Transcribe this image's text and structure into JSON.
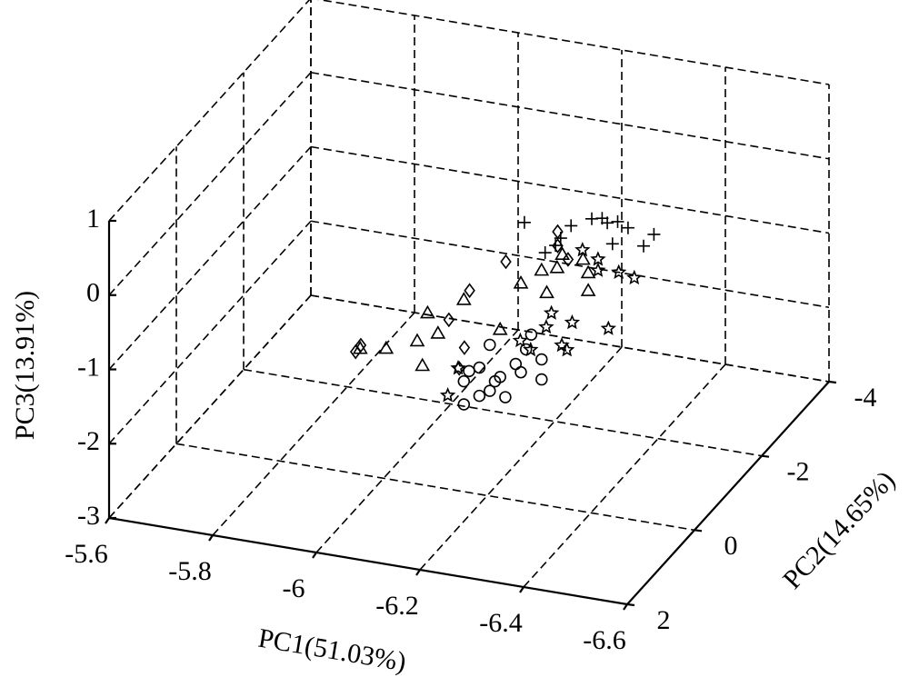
{
  "chart_data": {
    "type": "scatter3d",
    "xlabel": "PC1(51.03%)",
    "ylabel": "PC2(14.65%)",
    "zlabel": "PC3(13.91%)",
    "xlim": [
      -5.6,
      -6.6
    ],
    "xticks": [
      -5.6,
      -5.8,
      -6,
      -6.2,
      -6.4,
      -6.6
    ],
    "ylim": [
      2,
      -4
    ],
    "yticks": [
      2,
      0,
      -2,
      -4
    ],
    "zlim": [
      -3,
      1
    ],
    "zticks": [
      -3,
      -2,
      -1,
      0,
      1
    ],
    "grid": true,
    "color": "#000000",
    "series": [
      {
        "marker": "plus",
        "x": [
          -6.09,
          -6.16,
          -6.22,
          -6.25,
          -6.27,
          -6.29,
          -6.26,
          -6.32,
          -6.34,
          -6.13,
          -6.18,
          -6.24,
          -6.15
        ],
        "y": [
          -2.8,
          -2.8,
          -2.8,
          -2.8,
          -2.8,
          -2.8,
          -2.8,
          -2.8,
          -2.8,
          -2.8,
          -2.8,
          -2.8,
          -2.8
        ],
        "z": [
          -0.85,
          -0.98,
          -0.65,
          -0.67,
          -0.63,
          -0.69,
          -0.94,
          -0.9,
          -0.72,
          -1.21,
          -0.79,
          -0.62,
          -1.09
        ]
      },
      {
        "marker": "star",
        "x": [
          -6.38,
          -6.35,
          -6.31,
          -6.33,
          -6.26,
          -6.24,
          -6.21,
          -6.18,
          -6.16,
          -6.04,
          -6.02,
          -6.28,
          -6.31,
          -6.22,
          -6.25
        ],
        "y": [
          -1.6,
          -1.6,
          -1.6,
          -1.6,
          -1.6,
          -1.6,
          -1.6,
          -1.6,
          -1.6,
          -1.6,
          -1.6,
          -1.6,
          -1.6,
          -1.6,
          -1.6
        ],
        "z": [
          -0.66,
          -0.62,
          -0.64,
          -1.4,
          -1.4,
          -1.73,
          -1.52,
          -1.86,
          -1.76,
          -2.27,
          -2.66,
          -0.4,
          -0.49,
          -1.32,
          -1.78
        ]
      },
      {
        "marker": "triangle",
        "x": [
          -5.89,
          -5.94,
          -6.01,
          -6.0,
          -6.02,
          -6.04,
          -6.09,
          -6.16,
          -6.2,
          -6.24,
          -6.25,
          -6.28,
          -6.27,
          -6.33,
          -6.33,
          -6.32
        ],
        "y": [
          -1,
          -1,
          -1,
          -1,
          -1,
          -1,
          -1,
          -1,
          -1,
          -1,
          -1,
          -1,
          -1,
          -1,
          -1,
          -1
        ],
        "z": [
          -1.88,
          -1.82,
          -1.97,
          -1.65,
          -1.25,
          -1.5,
          -0.99,
          -1.31,
          -0.64,
          -0.42,
          -0.71,
          -0.16,
          -0.35,
          -0.59,
          -0.35,
          -0.18
        ]
      },
      {
        "marker": "diamond",
        "x": [
          -5.92,
          -5.93,
          -6.1,
          -6.13,
          -6.14,
          -6.12,
          -6.21,
          -6.31,
          -6.33,
          -6.31
        ],
        "y": [
          -0.4,
          -0.4,
          -0.4,
          -0.4,
          -0.4,
          -0.4,
          -0.4,
          -0.4,
          -0.4,
          -0.4
        ],
        "z": [
          -1.59,
          -1.49,
          -0.95,
          -1.29,
          -0.51,
          -1.58,
          -0.04,
          0.29,
          0.13,
          0.48
        ]
      },
      {
        "marker": "circle",
        "x": [
          -6.09,
          -6.09,
          -6.12,
          -6.14,
          -6.17,
          -6.16,
          -6.19,
          -6.2,
          -6.22,
          -6.24,
          -6.24,
          -6.12,
          -6.15,
          -6.1,
          -6.14,
          -6.21
        ],
        "y": [
          -1,
          -1,
          -1,
          -1,
          -1,
          -1,
          -1,
          -1,
          -1,
          -1,
          -1,
          -1,
          -1,
          -1,
          -1,
          -1
        ],
        "z": [
          -2.4,
          -2.09,
          -2.25,
          -2.16,
          -2.21,
          -1.95,
          -1.74,
          -1.84,
          -1.31,
          -1.89,
          -1.62,
          -1.87,
          -2.02,
          -1.94,
          -1.54,
          -1.52
        ]
      }
    ]
  }
}
